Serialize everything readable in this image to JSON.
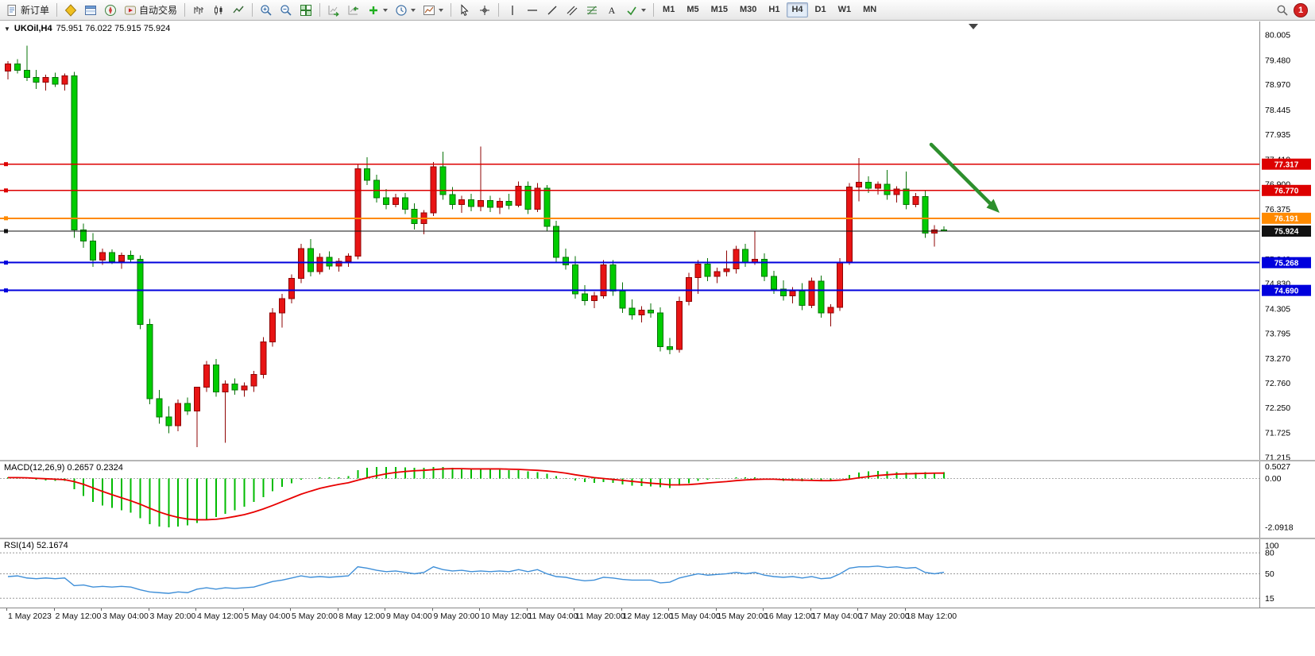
{
  "toolbar": {
    "notification_count": "1",
    "timeframes": [
      "M1",
      "M5",
      "M15",
      "M30",
      "H1",
      "H4",
      "D1",
      "W1",
      "MN"
    ],
    "active_timeframe": "H4",
    "items": [
      {
        "name": "new-order-button",
        "icon": "new-order-icon",
        "label": "新订单"
      },
      {
        "sep": true
      },
      {
        "name": "market-watch-button",
        "icon": "market-watch-icon"
      },
      {
        "name": "data-window-button",
        "icon": "data-window-icon"
      },
      {
        "name": "navigator-button",
        "icon": "navigator-icon"
      },
      {
        "name": "autotrading-button",
        "icon": "autotrading-icon",
        "label": "自动交易"
      },
      {
        "sep": true
      },
      {
        "name": "bar-chart-button",
        "icon": "bar-chart-icon"
      },
      {
        "name": "candlestick-button",
        "icon": "candlestick-icon"
      },
      {
        "name": "line-chart-button",
        "icon": "line-chart-icon"
      },
      {
        "sep": true
      },
      {
        "name": "zoom-in-button",
        "icon": "zoom-in-icon"
      },
      {
        "name": "zoom-out-button",
        "icon": "zoom-out-icon"
      },
      {
        "name": "tile-windows-button",
        "icon": "tile-windows-icon"
      },
      {
        "sep": true
      },
      {
        "name": "auto-scroll-button",
        "icon": "auto-scroll-icon"
      },
      {
        "name": "chart-shift-button",
        "icon": "chart-shift-icon"
      },
      {
        "name": "add-indicator-button",
        "icon": "add-indicator-icon",
        "caret": true
      },
      {
        "name": "period-button",
        "icon": "period-icon",
        "caret": true
      },
      {
        "name": "template-button",
        "icon": "template-icon",
        "caret": true
      },
      {
        "sep": true
      },
      {
        "name": "cursor-button",
        "icon": "cursor-icon"
      },
      {
        "name": "crosshair-button",
        "icon": "crosshair-icon"
      },
      {
        "sep": true
      },
      {
        "name": "vertical-line-button",
        "icon": "vertical-line-icon"
      },
      {
        "name": "horizontal-line-button",
        "icon": "horizontal-line-icon"
      },
      {
        "name": "trendline-button",
        "icon": "trendline-icon"
      },
      {
        "name": "channel-button",
        "icon": "channel-icon"
      },
      {
        "name": "fibonacci-button",
        "icon": "fibonacci-icon"
      },
      {
        "name": "text-button",
        "icon": "text-icon"
      },
      {
        "name": "arrows-button",
        "icon": "arrows-icon",
        "caret": true
      },
      {
        "sep": true
      }
    ]
  },
  "style": {
    "up": "#e81414",
    "up_dark": "#8f0404",
    "down": "#00cc00",
    "down_dark": "#067306",
    "macd_hist": "#00bb00",
    "macd_signal": "#e80000",
    "rsi_line": "#3f8fd8",
    "arrow": "#2d8f2d"
  },
  "chart": {
    "symbol_label": "UKOil,H4",
    "ohlc_text": "75.951 76.022 75.915 75.924",
    "price_axis": [
      "80.005",
      "79.480",
      "78.970",
      "78.445",
      "77.935",
      "77.410",
      "76.900",
      "76.375",
      "75.865",
      "75.340",
      "74.830",
      "74.305",
      "73.795",
      "73.270",
      "72.760",
      "72.250",
      "71.725",
      "71.215"
    ],
    "hlines": [
      {
        "price": 77.317,
        "label": "77.317",
        "color": "#dd0000",
        "width": 1.5
      },
      {
        "price": 76.77,
        "label": "76.770",
        "color": "#dd0000",
        "width": 1.5
      },
      {
        "price": 76.191,
        "label": "76.191",
        "color": "#ff8a00",
        "width": 2
      },
      {
        "price": 75.268,
        "label": "75.268",
        "color": "#0000dd",
        "width": 2
      },
      {
        "price": 74.69,
        "label": "74.690",
        "color": "#0000dd",
        "width": 2
      }
    ],
    "current_price": {
      "price": 75.924,
      "label": "75.924",
      "color": "#111111",
      "width": 1.2
    },
    "time_axis": [
      "1 May 2023",
      "2 May 12:00",
      "3 May 04:00",
      "3 May 20:00",
      "4 May 12:00",
      "5 May 04:00",
      "5 May 20:00",
      "8 May 12:00",
      "9 May 04:00",
      "9 May 20:00",
      "10 May 12:00",
      "11 May 04:00",
      "11 May 20:00",
      "12 May 12:00",
      "15 May 04:00",
      "15 May 20:00",
      "16 May 12:00",
      "17 May 04:00",
      "17 May 20:00",
      "18 May 12:00"
    ]
  },
  "macd": {
    "header": "MACD(12,26,9) 0.2657 0.2324",
    "axis": [
      {
        "v": 0.5027,
        "t": "0.5027"
      },
      {
        "v": 0,
        "t": "0.00"
      },
      {
        "v": -2.0918,
        "t": "-2.0918"
      }
    ]
  },
  "rsi": {
    "header": "RSI(14) 52.1674",
    "levels": [
      {
        "v": 100,
        "t": "100"
      },
      {
        "v": 80,
        "t": "80"
      },
      {
        "v": 50,
        "t": "50"
      },
      {
        "v": 15,
        "t": "15"
      }
    ]
  },
  "chart_data": {
    "type": "candlestick",
    "symbol": "UKOil",
    "timeframe": "H4",
    "price_range": [
      71.215,
      80.005
    ],
    "candles": [
      [
        79.25,
        79.46,
        79.08,
        79.4
      ],
      [
        79.4,
        79.5,
        79.2,
        79.27
      ],
      [
        79.27,
        79.78,
        79.05,
        79.12
      ],
      [
        79.12,
        79.28,
        78.88,
        79.02
      ],
      [
        79.02,
        79.18,
        78.85,
        79.12
      ],
      [
        79.12,
        79.22,
        78.92,
        78.98
      ],
      [
        78.98,
        79.2,
        78.85,
        79.15
      ],
      [
        79.15,
        79.24,
        75.78,
        75.95
      ],
      [
        75.95,
        76.08,
        75.58,
        75.72
      ],
      [
        75.72,
        75.88,
        75.18,
        75.32
      ],
      [
        75.32,
        75.56,
        75.22,
        75.48
      ],
      [
        75.48,
        75.54,
        75.24,
        75.3
      ],
      [
        75.3,
        75.48,
        75.14,
        75.42
      ],
      [
        75.42,
        75.52,
        75.28,
        75.34
      ],
      [
        75.34,
        75.42,
        73.88,
        73.98
      ],
      [
        73.98,
        74.1,
        72.32,
        72.44
      ],
      [
        72.44,
        72.62,
        71.92,
        72.06
      ],
      [
        72.06,
        72.28,
        71.72,
        71.88
      ],
      [
        71.88,
        72.42,
        71.76,
        72.34
      ],
      [
        72.34,
        72.46,
        72.1,
        72.18
      ],
      [
        72.18,
        72.32,
        71.43,
        72.68
      ],
      [
        72.68,
        73.22,
        72.58,
        73.14
      ],
      [
        73.14,
        73.26,
        72.48,
        72.58
      ],
      [
        72.58,
        72.82,
        71.52,
        72.74
      ],
      [
        72.74,
        72.86,
        72.52,
        72.62
      ],
      [
        72.62,
        72.78,
        72.48,
        72.7
      ],
      [
        72.7,
        73.02,
        72.58,
        72.94
      ],
      [
        72.94,
        73.72,
        72.86,
        73.62
      ],
      [
        73.62,
        74.32,
        73.52,
        74.22
      ],
      [
        74.22,
        74.62,
        73.92,
        74.52
      ],
      [
        74.52,
        75.02,
        74.42,
        74.94
      ],
      [
        74.94,
        75.66,
        74.84,
        75.56
      ],
      [
        75.56,
        75.76,
        74.98,
        75.08
      ],
      [
        75.08,
        75.46,
        75.02,
        75.38
      ],
      [
        75.38,
        75.5,
        75.12,
        75.2
      ],
      [
        75.2,
        75.36,
        75.08,
        75.3
      ],
      [
        75.3,
        75.46,
        75.18,
        75.4
      ],
      [
        75.4,
        77.32,
        75.34,
        77.22
      ],
      [
        77.22,
        77.46,
        76.88,
        76.98
      ],
      [
        76.98,
        77.1,
        76.52,
        76.62
      ],
      [
        76.62,
        76.8,
        76.38,
        76.48
      ],
      [
        76.48,
        76.7,
        76.42,
        76.62
      ],
      [
        76.62,
        76.72,
        76.28,
        76.38
      ],
      [
        76.38,
        76.5,
        75.96,
        76.08
      ],
      [
        76.08,
        76.36,
        75.86,
        76.3
      ],
      [
        76.3,
        77.36,
        76.24,
        77.26
      ],
      [
        77.26,
        77.58,
        76.58,
        76.68
      ],
      [
        76.68,
        76.84,
        76.38,
        76.48
      ],
      [
        76.48,
        76.66,
        76.3,
        76.58
      ],
      [
        76.58,
        76.7,
        76.34,
        76.44
      ],
      [
        76.44,
        77.68,
        76.34,
        76.56
      ],
      [
        76.56,
        76.66,
        76.32,
        76.42
      ],
      [
        76.42,
        76.62,
        76.28,
        76.54
      ],
      [
        76.54,
        76.7,
        76.38,
        76.46
      ],
      [
        76.46,
        76.96,
        76.42,
        76.86
      ],
      [
        76.86,
        76.96,
        76.28,
        76.38
      ],
      [
        76.38,
        76.92,
        76.32,
        76.82
      ],
      [
        76.82,
        76.88,
        75.92,
        76.02
      ],
      [
        76.02,
        76.14,
        75.28,
        75.38
      ],
      [
        75.38,
        75.56,
        75.12,
        75.22
      ],
      [
        75.22,
        75.4,
        74.52,
        74.62
      ],
      [
        74.62,
        74.8,
        74.38,
        74.48
      ],
      [
        74.48,
        74.66,
        74.32,
        74.58
      ],
      [
        74.58,
        75.32,
        74.52,
        75.22
      ],
      [
        75.22,
        75.32,
        74.58,
        74.68
      ],
      [
        74.68,
        74.86,
        74.22,
        74.32
      ],
      [
        74.32,
        74.5,
        74.08,
        74.18
      ],
      [
        74.18,
        74.36,
        74.02,
        74.28
      ],
      [
        74.28,
        74.42,
        74.12,
        74.22
      ],
      [
        74.22,
        74.34,
        73.42,
        73.52
      ],
      [
        73.52,
        73.7,
        73.36,
        73.46
      ],
      [
        73.46,
        74.56,
        73.4,
        74.46
      ],
      [
        74.46,
        75.06,
        74.38,
        74.96
      ],
      [
        74.96,
        75.32,
        74.62,
        75.24
      ],
      [
        75.24,
        75.36,
        74.88,
        74.98
      ],
      [
        74.98,
        75.16,
        74.84,
        75.08
      ],
      [
        75.08,
        75.52,
        74.98,
        75.14
      ],
      [
        75.14,
        75.62,
        75.04,
        75.54
      ],
      [
        75.54,
        75.66,
        75.18,
        75.28
      ],
      [
        75.28,
        75.92,
        75.22,
        75.34
      ],
      [
        75.34,
        75.46,
        74.88,
        74.98
      ],
      [
        74.98,
        75.1,
        74.62,
        74.72
      ],
      [
        74.72,
        74.9,
        74.48,
        74.58
      ],
      [
        74.58,
        74.76,
        74.42,
        74.68
      ],
      [
        74.68,
        74.84,
        74.28,
        74.38
      ],
      [
        74.38,
        74.96,
        74.32,
        74.88
      ],
      [
        74.88,
        75.0,
        74.12,
        74.22
      ],
      [
        74.22,
        74.4,
        73.94,
        74.34
      ],
      [
        74.34,
        75.36,
        74.26,
        75.28
      ],
      [
        75.28,
        76.92,
        75.22,
        76.84
      ],
      [
        76.84,
        77.44,
        76.54,
        76.94
      ],
      [
        76.94,
        77.06,
        76.72,
        76.82
      ],
      [
        76.82,
        76.96,
        76.68,
        76.9
      ],
      [
        76.9,
        77.2,
        76.58,
        76.68
      ],
      [
        76.68,
        76.86,
        76.52,
        76.8
      ],
      [
        76.8,
        77.16,
        76.38,
        76.48
      ],
      [
        76.48,
        76.72,
        76.42,
        76.64
      ],
      [
        76.64,
        76.76,
        75.78,
        75.88
      ],
      [
        75.88,
        76.05,
        75.6,
        75.95
      ],
      [
        75.951,
        76.022,
        75.915,
        75.924
      ]
    ],
    "macd_hist": [
      0.05,
      0.05,
      0.0,
      -0.05,
      -0.08,
      -0.1,
      -0.1,
      -0.45,
      -0.75,
      -1.0,
      -1.15,
      -1.25,
      -1.35,
      -1.45,
      -1.7,
      -1.95,
      -2.05,
      -2.09,
      -2.05,
      -2.0,
      -1.9,
      -1.75,
      -1.65,
      -1.5,
      -1.35,
      -1.2,
      -1.0,
      -0.8,
      -0.55,
      -0.35,
      -0.2,
      -0.05,
      0.0,
      0.05,
      0.05,
      0.05,
      0.1,
      0.35,
      0.45,
      0.5,
      0.5,
      0.5,
      0.48,
      0.45,
      0.45,
      0.5,
      0.5,
      0.45,
      0.42,
      0.4,
      0.42,
      0.4,
      0.38,
      0.36,
      0.35,
      0.3,
      0.28,
      0.2,
      0.1,
      0.02,
      -0.08,
      -0.15,
      -0.18,
      -0.15,
      -0.18,
      -0.25,
      -0.3,
      -0.32,
      -0.33,
      -0.38,
      -0.4,
      -0.3,
      -0.2,
      -0.1,
      -0.05,
      -0.02,
      0.0,
      0.05,
      0.05,
      0.05,
      0.0,
      -0.05,
      -0.1,
      -0.1,
      -0.12,
      -0.1,
      -0.12,
      -0.1,
      0.0,
      0.15,
      0.25,
      0.3,
      0.32,
      0.3,
      0.28,
      0.25,
      0.25,
      0.27,
      0.26,
      0.2657
    ],
    "macd_signal": [
      0.04,
      0.04,
      0.03,
      0.01,
      -0.01,
      -0.03,
      -0.05,
      -0.13,
      -0.25,
      -0.4,
      -0.55,
      -0.69,
      -0.82,
      -0.95,
      -1.1,
      -1.27,
      -1.43,
      -1.56,
      -1.66,
      -1.73,
      -1.76,
      -1.76,
      -1.74,
      -1.69,
      -1.62,
      -1.54,
      -1.43,
      -1.3,
      -1.15,
      -0.99,
      -0.83,
      -0.67,
      -0.54,
      -0.42,
      -0.33,
      -0.25,
      -0.18,
      -0.07,
      0.03,
      0.12,
      0.2,
      0.26,
      0.3,
      0.33,
      0.35,
      0.38,
      0.41,
      0.42,
      0.42,
      0.41,
      0.41,
      0.41,
      0.41,
      0.4,
      0.39,
      0.37,
      0.35,
      0.32,
      0.28,
      0.23,
      0.16,
      0.1,
      0.04,
      0.0,
      -0.04,
      -0.08,
      -0.12,
      -0.16,
      -0.2,
      -0.23,
      -0.27,
      -0.27,
      -0.26,
      -0.23,
      -0.19,
      -0.16,
      -0.13,
      -0.09,
      -0.06,
      -0.04,
      -0.03,
      -0.03,
      -0.05,
      -0.06,
      -0.07,
      -0.08,
      -0.09,
      -0.09,
      -0.07,
      -0.03,
      0.03,
      0.08,
      0.13,
      0.16,
      0.19,
      0.2,
      0.21,
      0.22,
      0.23,
      0.2324
    ],
    "rsi_values": [
      46,
      47,
      44,
      43,
      44,
      43,
      44,
      33,
      34,
      31,
      32,
      31,
      32,
      31,
      27,
      24,
      23,
      22,
      24,
      23,
      28,
      30,
      28,
      30,
      29,
      30,
      31,
      35,
      39,
      41,
      44,
      47,
      45,
      46,
      45,
      46,
      47,
      60,
      58,
      55,
      53,
      54,
      52,
      50,
      52,
      60,
      56,
      54,
      55,
      53,
      54,
      53,
      54,
      53,
      56,
      53,
      56,
      50,
      46,
      45,
      42,
      40,
      41,
      45,
      44,
      42,
      41,
      41,
      41,
      37,
      38,
      44,
      47,
      50,
      48,
      49,
      50,
      52,
      50,
      52,
      48,
      46,
      45,
      46,
      44,
      46,
      43,
      44,
      50,
      58,
      60,
      60,
      61,
      59,
      60,
      58,
      59,
      52,
      50,
      52.17
    ]
  }
}
